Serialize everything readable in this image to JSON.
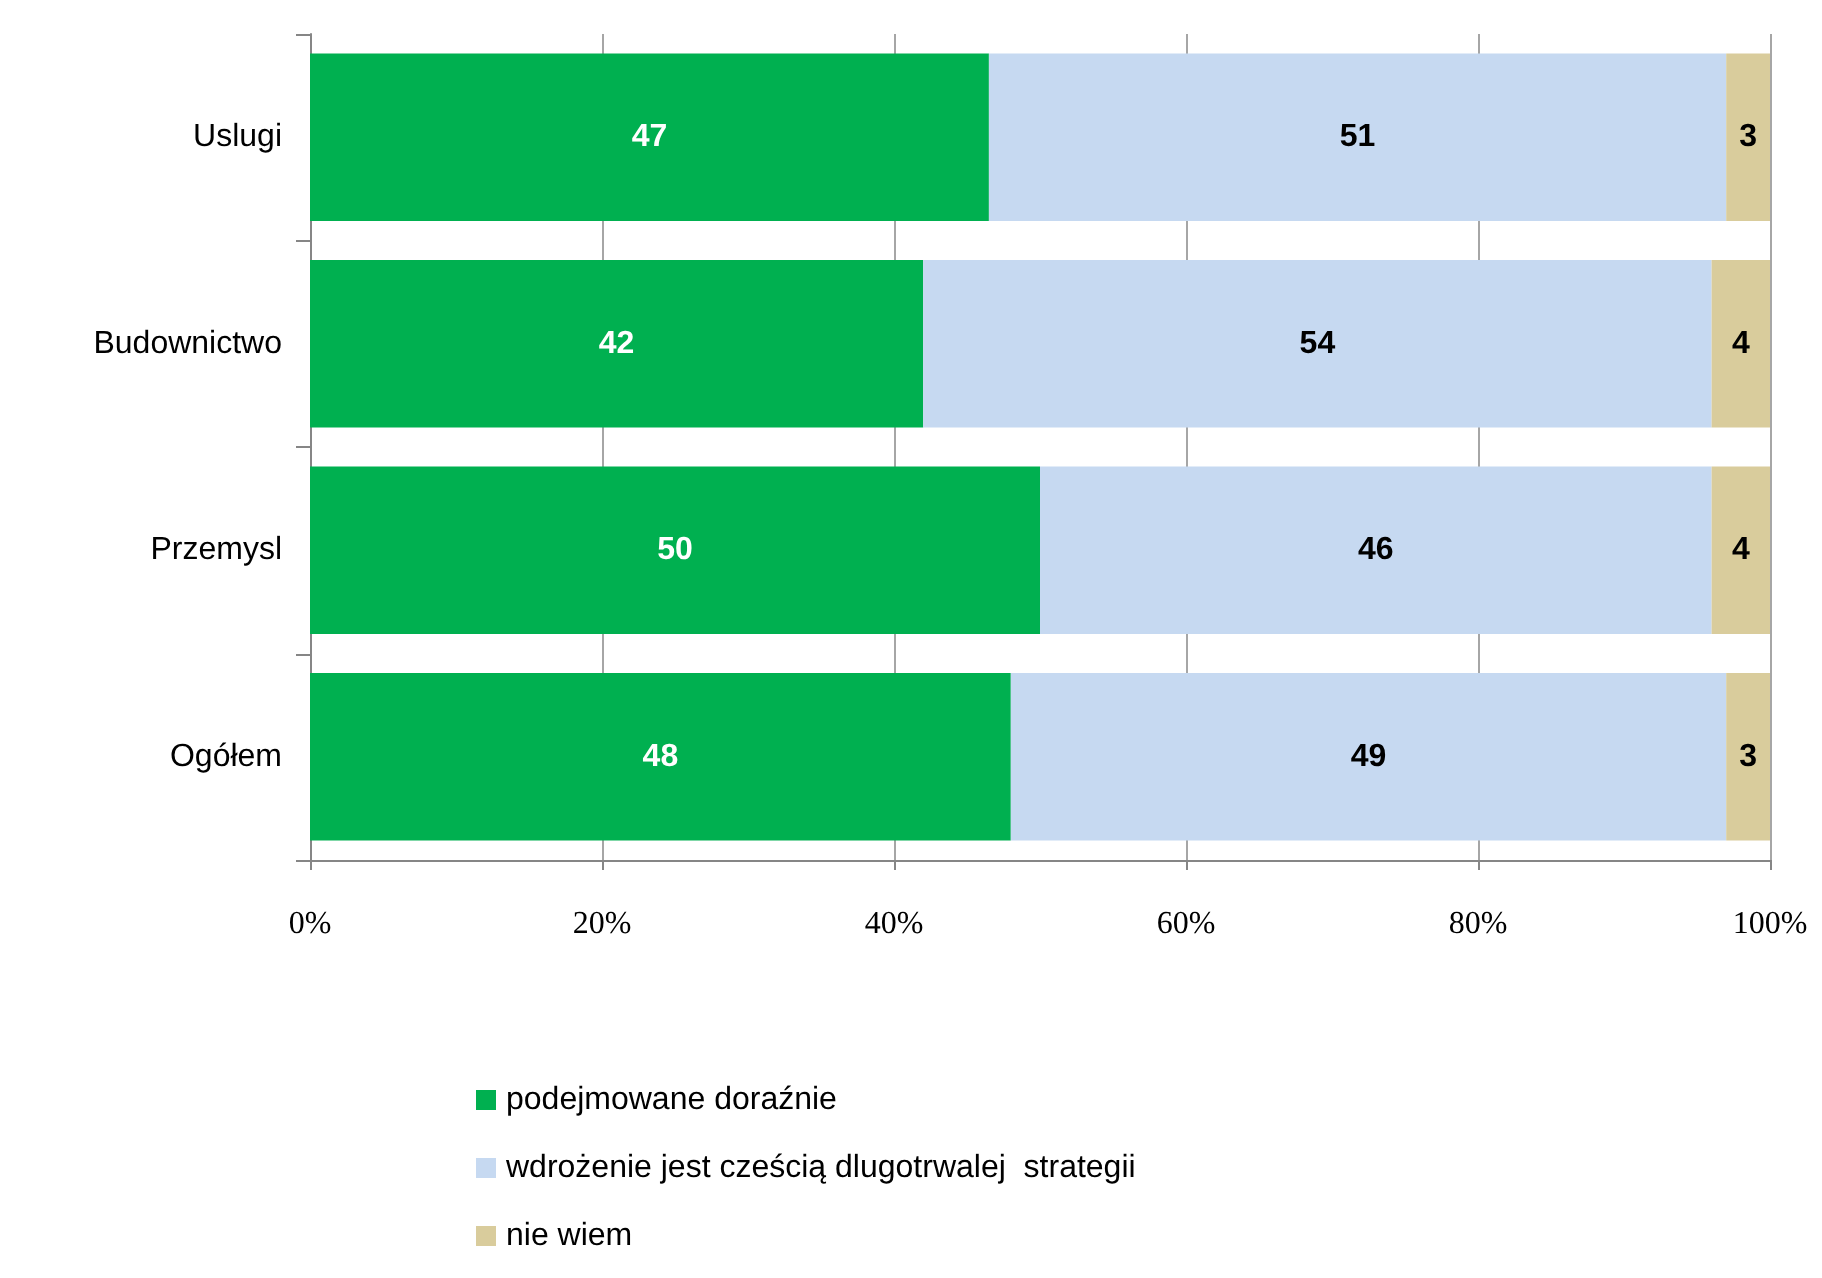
{
  "chart_data": {
    "type": "bar",
    "orientation": "horizontal",
    "stacked": true,
    "categories": [
      "Uslugi",
      "Budownictwo",
      "Przemysl",
      "Ogółem"
    ],
    "series": [
      {
        "name": "podejmowane doraźnie",
        "color": "#00b050",
        "values": [
          46.5,
          42,
          50,
          48
        ],
        "value_labels": [
          "47",
          "42",
          "50",
          "48"
        ]
      },
      {
        "name": "wdrożenie jest cześcią dlugotrwalej  strategii",
        "color": "#c6d9f1",
        "values": [
          50.5,
          54,
          46,
          49
        ],
        "value_labels": [
          "51",
          "54",
          "46",
          "49"
        ]
      },
      {
        "name": "nie wiem",
        "color": "#d9cc9c",
        "values": [
          3,
          4,
          4,
          3
        ],
        "value_labels": [
          "3",
          "4",
          "4",
          "3"
        ]
      }
    ],
    "xlim": [
      0,
      100
    ],
    "xticks": [
      {
        "value": 0,
        "label": "0%"
      },
      {
        "value": 20,
        "label": "20%"
      },
      {
        "value": 40,
        "label": "40%"
      },
      {
        "value": 60,
        "label": "60%"
      },
      {
        "value": 80,
        "label": "80%"
      },
      {
        "value": 100,
        "label": "100%"
      }
    ],
    "grid": "x",
    "legend": "bottom"
  }
}
